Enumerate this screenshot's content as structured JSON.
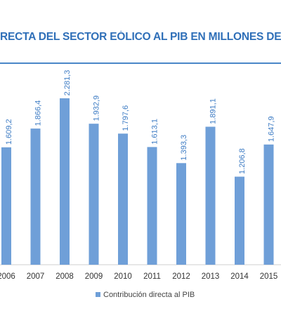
{
  "title": "RECTA DEL SECTOR EÓLICO AL PIB EN MILLONES DE € C",
  "chart_data": {
    "type": "bar",
    "categories": [
      "2006",
      "2007",
      "2008",
      "2009",
      "2010",
      "2011",
      "2012",
      "2013",
      "2014",
      "2015"
    ],
    "value_labels": [
      "1.609,2",
      "1.866,4",
      "2.281,3",
      "1.932,9",
      "1.797,6",
      "1.613,1",
      "1.393,3",
      "1.891,1",
      "1.206,8",
      "1.647,9"
    ],
    "series": [
      {
        "name": "Contribución directa al PIB",
        "values": [
          1609.2,
          1866.4,
          2281.3,
          1932.9,
          1797.6,
          1613.1,
          1393.3,
          1891.1,
          1206.8,
          1647.9
        ]
      }
    ],
    "ylim": [
      0,
      2450
    ],
    "grid": false,
    "legend_position": "bottom-center",
    "bar_color": "#6f9fd8",
    "accent_color": "#2f6fb8"
  }
}
